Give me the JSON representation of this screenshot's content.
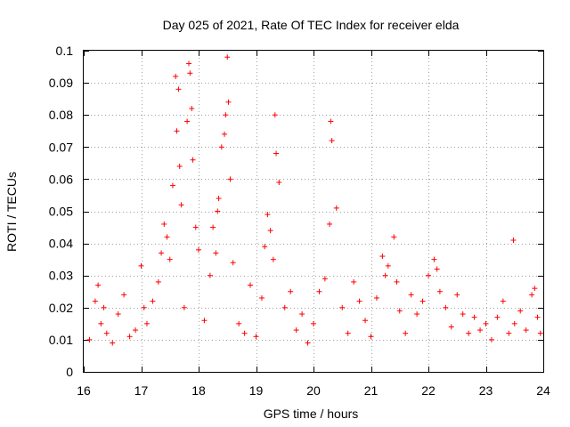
{
  "chart_data": {
    "type": "scatter",
    "title": "Day 025 of 2021, Rate Of TEC Index for receiver elda",
    "xlabel": "GPS time / hours",
    "ylabel": "ROTI / TECUs",
    "xlim": [
      16,
      24
    ],
    "ylim": [
      0,
      0.1
    ],
    "xticks": [
      "16",
      "17",
      "18",
      "19",
      "20",
      "21",
      "22",
      "23",
      "24"
    ],
    "yticks": [
      "0",
      "0.01",
      "0.02",
      "0.03",
      "0.04",
      "0.05",
      "0.06",
      "0.07",
      "0.08",
      "0.09",
      "0.1"
    ],
    "grid": true,
    "marker": "plus",
    "color": "#ff0000",
    "series": [
      {
        "name": "ROTI",
        "x": [
          16.1,
          16.2,
          16.25,
          16.3,
          16.35,
          16.4,
          16.5,
          16.6,
          16.7,
          16.8,
          16.9,
          17.0,
          17.05,
          17.1,
          17.2,
          17.3,
          17.35,
          17.4,
          17.45,
          17.5,
          17.55,
          17.6,
          17.62,
          17.65,
          17.67,
          17.7,
          17.75,
          17.8,
          17.83,
          17.85,
          17.88,
          17.9,
          17.95,
          18.0,
          18.1,
          18.2,
          18.25,
          18.3,
          18.33,
          18.35,
          18.4,
          18.45,
          18.47,
          18.5,
          18.52,
          18.55,
          18.6,
          18.7,
          18.8,
          18.9,
          19.0,
          19.1,
          19.15,
          19.2,
          19.25,
          19.3,
          19.33,
          19.35,
          19.4,
          19.5,
          19.6,
          19.7,
          19.8,
          19.9,
          20.0,
          20.1,
          20.2,
          20.28,
          20.3,
          20.32,
          20.4,
          20.5,
          20.6,
          20.7,
          20.8,
          20.9,
          21.0,
          21.1,
          21.2,
          21.25,
          21.3,
          21.4,
          21.45,
          21.5,
          21.6,
          21.7,
          21.8,
          21.9,
          22.0,
          22.1,
          22.15,
          22.2,
          22.3,
          22.4,
          22.5,
          22.6,
          22.7,
          22.8,
          22.9,
          23.0,
          23.1,
          23.2,
          23.3,
          23.4,
          23.48,
          23.5,
          23.6,
          23.7,
          23.8,
          23.85,
          23.9,
          23.95
        ],
        "y": [
          0.01,
          0.022,
          0.027,
          0.015,
          0.02,
          0.012,
          0.009,
          0.018,
          0.024,
          0.011,
          0.013,
          0.033,
          0.02,
          0.015,
          0.022,
          0.028,
          0.037,
          0.046,
          0.042,
          0.035,
          0.058,
          0.092,
          0.075,
          0.088,
          0.064,
          0.052,
          0.02,
          0.078,
          0.096,
          0.093,
          0.082,
          0.066,
          0.045,
          0.038,
          0.016,
          0.03,
          0.045,
          0.037,
          0.05,
          0.054,
          0.07,
          0.074,
          0.08,
          0.098,
          0.084,
          0.06,
          0.034,
          0.015,
          0.012,
          0.027,
          0.011,
          0.023,
          0.039,
          0.049,
          0.044,
          0.035,
          0.08,
          0.068,
          0.059,
          0.02,
          0.025,
          0.013,
          0.018,
          0.009,
          0.015,
          0.025,
          0.029,
          0.046,
          0.078,
          0.072,
          0.051,
          0.02,
          0.012,
          0.028,
          0.022,
          0.016,
          0.011,
          0.023,
          0.036,
          0.03,
          0.033,
          0.042,
          0.028,
          0.019,
          0.012,
          0.024,
          0.018,
          0.022,
          0.03,
          0.035,
          0.032,
          0.025,
          0.02,
          0.014,
          0.024,
          0.018,
          0.012,
          0.017,
          0.013,
          0.015,
          0.01,
          0.017,
          0.022,
          0.012,
          0.041,
          0.015,
          0.019,
          0.013,
          0.024,
          0.026,
          0.017,
          0.012
        ]
      }
    ]
  }
}
